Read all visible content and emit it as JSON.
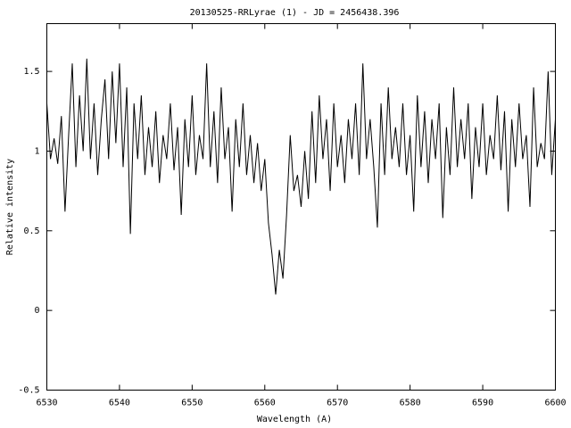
{
  "chart_data": {
    "type": "line",
    "title": "20130525-RRLyrae (1) - JD = 2456438.396",
    "xlabel": "Wavelength (A)",
    "ylabel": "Relative intensity",
    "color": "#000000",
    "xlim": [
      6530,
      6600
    ],
    "xticks": [
      6530,
      6540,
      6550,
      6560,
      6570,
      6580,
      6590,
      6600
    ],
    "ylim": [
      -0.5,
      1.8
    ],
    "yticks": [
      -0.5,
      0,
      0.5,
      1,
      1.5
    ],
    "x": [
      6530,
      6530.5,
      6531,
      6531.5,
      6532,
      6532.5,
      6533,
      6533.5,
      6534,
      6534.5,
      6535,
      6535.5,
      6536,
      6536.5,
      6537,
      6537.5,
      6538,
      6538.5,
      6539,
      6539.5,
      6540,
      6540.5,
      6541,
      6541.5,
      6542,
      6542.5,
      6543,
      6543.5,
      6544,
      6544.5,
      6545,
      6545.5,
      6546,
      6546.5,
      6547,
      6547.5,
      6548,
      6548.5,
      6549,
      6549.5,
      6550,
      6550.5,
      6551,
      6551.5,
      6552,
      6552.5,
      6553,
      6553.5,
      6554,
      6554.5,
      6555,
      6555.5,
      6556,
      6556.5,
      6557,
      6557.5,
      6558,
      6558.5,
      6559,
      6559.5,
      6560,
      6560.5,
      6561,
      6561.5,
      6562,
      6562.5,
      6563,
      6563.5,
      6564,
      6564.5,
      6565,
      6565.5,
      6566,
      6566.5,
      6567,
      6567.5,
      6568,
      6568.5,
      6569,
      6569.5,
      6570,
      6570.5,
      6571,
      6571.5,
      6572,
      6572.5,
      6573,
      6573.5,
      6574,
      6574.5,
      6575,
      6575.5,
      6576,
      6576.5,
      6577,
      6577.5,
      6578,
      6578.5,
      6579,
      6579.5,
      6580,
      6580.5,
      6581,
      6581.5,
      6582,
      6582.5,
      6583,
      6583.5,
      6584,
      6584.5,
      6585,
      6585.5,
      6586,
      6586.5,
      6587,
      6587.5,
      6588,
      6588.5,
      6589,
      6589.5,
      6590,
      6590.5,
      6591,
      6591.5,
      6592,
      6592.5,
      6593,
      6593.5,
      6594,
      6594.5,
      6595,
      6595.5,
      6596,
      6596.5,
      6597,
      6597.5,
      6598,
      6598.5,
      6599,
      6599.5,
      6600
    ],
    "values": [
      1.3,
      0.95,
      1.08,
      0.92,
      1.22,
      0.62,
      1.1,
      1.55,
      0.9,
      1.35,
      1.0,
      1.58,
      0.95,
      1.3,
      0.85,
      1.2,
      1.45,
      0.95,
      1.5,
      1.05,
      1.55,
      0.9,
      1.4,
      0.48,
      1.3,
      0.95,
      1.35,
      0.85,
      1.15,
      0.9,
      1.25,
      0.8,
      1.1,
      0.95,
      1.3,
      0.88,
      1.15,
      0.6,
      1.2,
      0.9,
      1.35,
      0.85,
      1.1,
      0.95,
      1.55,
      0.9,
      1.25,
      0.8,
      1.4,
      0.95,
      1.15,
      0.62,
      1.2,
      0.9,
      1.3,
      0.85,
      1.1,
      0.8,
      1.05,
      0.75,
      0.95,
      0.55,
      0.35,
      0.1,
      0.38,
      0.2,
      0.6,
      1.1,
      0.75,
      0.85,
      0.65,
      1.0,
      0.7,
      1.25,
      0.8,
      1.35,
      0.95,
      1.2,
      0.75,
      1.3,
      0.9,
      1.1,
      0.8,
      1.2,
      0.95,
      1.3,
      0.85,
      1.55,
      0.95,
      1.2,
      0.9,
      0.52,
      1.3,
      0.85,
      1.4,
      0.95,
      1.15,
      0.9,
      1.3,
      0.85,
      1.1,
      0.62,
      1.35,
      0.9,
      1.25,
      0.8,
      1.2,
      0.95,
      1.3,
      0.58,
      1.15,
      0.85,
      1.4,
      0.9,
      1.2,
      0.95,
      1.3,
      0.7,
      1.15,
      0.9,
      1.3,
      0.85,
      1.1,
      0.95,
      1.35,
      0.88,
      1.25,
      0.62,
      1.2,
      0.9,
      1.3,
      0.95,
      1.1,
      0.65,
      1.4,
      0.9,
      1.05,
      0.95,
      1.5,
      0.85,
      1.2
    ]
  }
}
